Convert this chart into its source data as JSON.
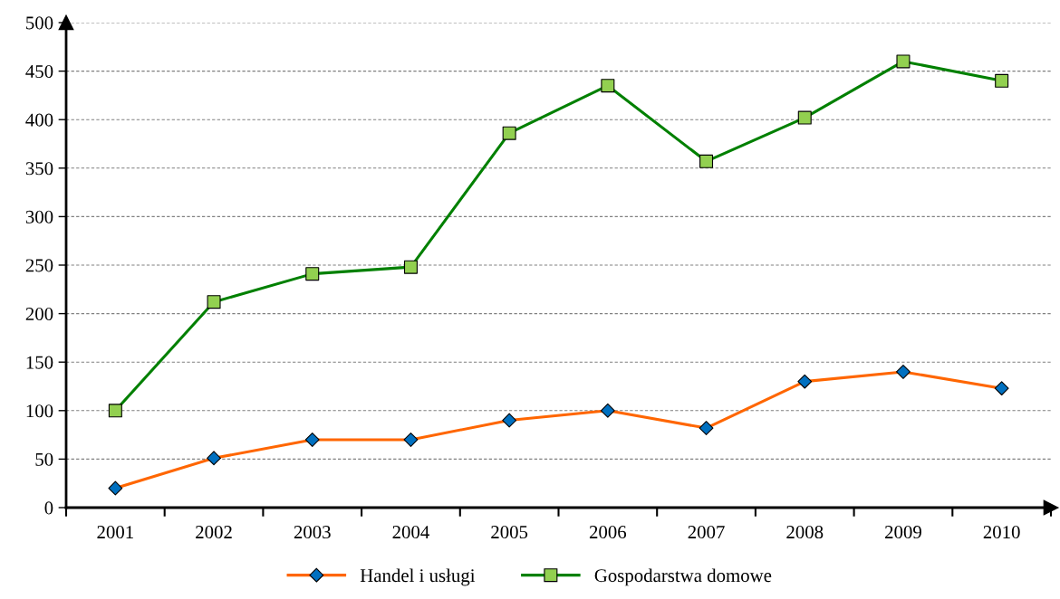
{
  "chart_data": {
    "type": "line",
    "categories": [
      "2001",
      "2002",
      "2003",
      "2004",
      "2005",
      "2006",
      "2007",
      "2008",
      "2009",
      "2010"
    ],
    "series": [
      {
        "name": "Handel i usługi",
        "color": "#ff6600",
        "marker": "diamond",
        "colors": [
          "#0070c0",
          "#0070c0",
          "#0070c0",
          "#0070c0",
          "#0070c0",
          "#0070c0",
          "#0070c0",
          "#0070c0",
          "#0070c0",
          "#0070c0"
        ],
        "values": [
          20,
          51,
          70,
          70,
          90,
          100,
          82,
          130,
          140,
          123
        ]
      },
      {
        "name": "Gospodarstwa domowe",
        "color": "#008000",
        "marker": "square",
        "colors": [
          "#92d050",
          "#92d050",
          "#92d050",
          "#92d050",
          "#92d050",
          "#92d050",
          "#92d050",
          "#92d050",
          "#92d050",
          "#92d050"
        ],
        "values": [
          100,
          212,
          241,
          248,
          386,
          435,
          357,
          402,
          460,
          440
        ]
      }
    ],
    "ylim": [
      0,
      500
    ],
    "yticks": [
      0,
      50,
      100,
      150,
      200,
      250,
      300,
      350,
      400,
      450,
      500
    ],
    "grid": "y",
    "legend": "bottom",
    "line_style": "solid"
  }
}
